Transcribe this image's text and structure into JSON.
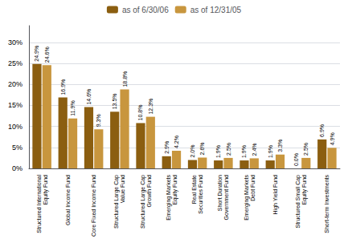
{
  "chart_data": {
    "type": "bar",
    "categories": [
      "Structured International\nEquity Fund",
      "Global Income Fund",
      "Core Fixed Income Fund",
      "Structured Large Cap\nValue Fund",
      "Structured Large Cap\nGrowth Fund",
      "Emerging Markets\nEquity Fund",
      "Real Estate\nSecurities Fund",
      "Short Duration\nGovernment Fund",
      "Emerging Markets\nDebt Fund",
      "High Yield Fund",
      "Structured Small Cap\nEquity Fund",
      "Short-term Investments"
    ],
    "series": [
      {
        "name": "as of 6/30/06",
        "color": "#8B5E10",
        "values": [
          24.9,
          16.9,
          14.6,
          13.5,
          10.8,
          2.9,
          2.0,
          1.9,
          1.9,
          1.9,
          0.0,
          6.9
        ],
        "value_labels": [
          "24.9%",
          "16.9%",
          "14.6%",
          "13.5%",
          "10.8%",
          "2.9%",
          "2.0%",
          "1.9%",
          "1.9%",
          "1.9%",
          "0.0%",
          "6.9%"
        ]
      },
      {
        "name": "as of 12/31/05",
        "color": "#C8963E",
        "values": [
          24.6,
          11.9,
          9.3,
          18.8,
          12.3,
          4.2,
          2.6,
          2.5,
          2.4,
          3.3,
          2.5,
          4.9
        ],
        "value_labels": [
          "24.6%",
          "11.9%",
          "9.3%",
          "18.8%",
          "12.3%",
          "4.2%",
          "2.6%",
          "2.5%",
          "2.4%",
          "3.3%",
          "2.5%",
          "4.9%"
        ]
      }
    ],
    "ylim": [
      0,
      34
    ],
    "yticks": [
      {
        "value": 0,
        "label": "0%"
      },
      {
        "value": 5,
        "label": "5%"
      },
      {
        "value": 10,
        "label": "10%"
      },
      {
        "value": 15,
        "label": "15%"
      },
      {
        "value": 20,
        "label": "20%"
      },
      {
        "value": 25,
        "label": "25%"
      },
      {
        "value": 30,
        "label": "30%"
      }
    ],
    "grid": true,
    "legend": "top",
    "data_labels": true
  }
}
